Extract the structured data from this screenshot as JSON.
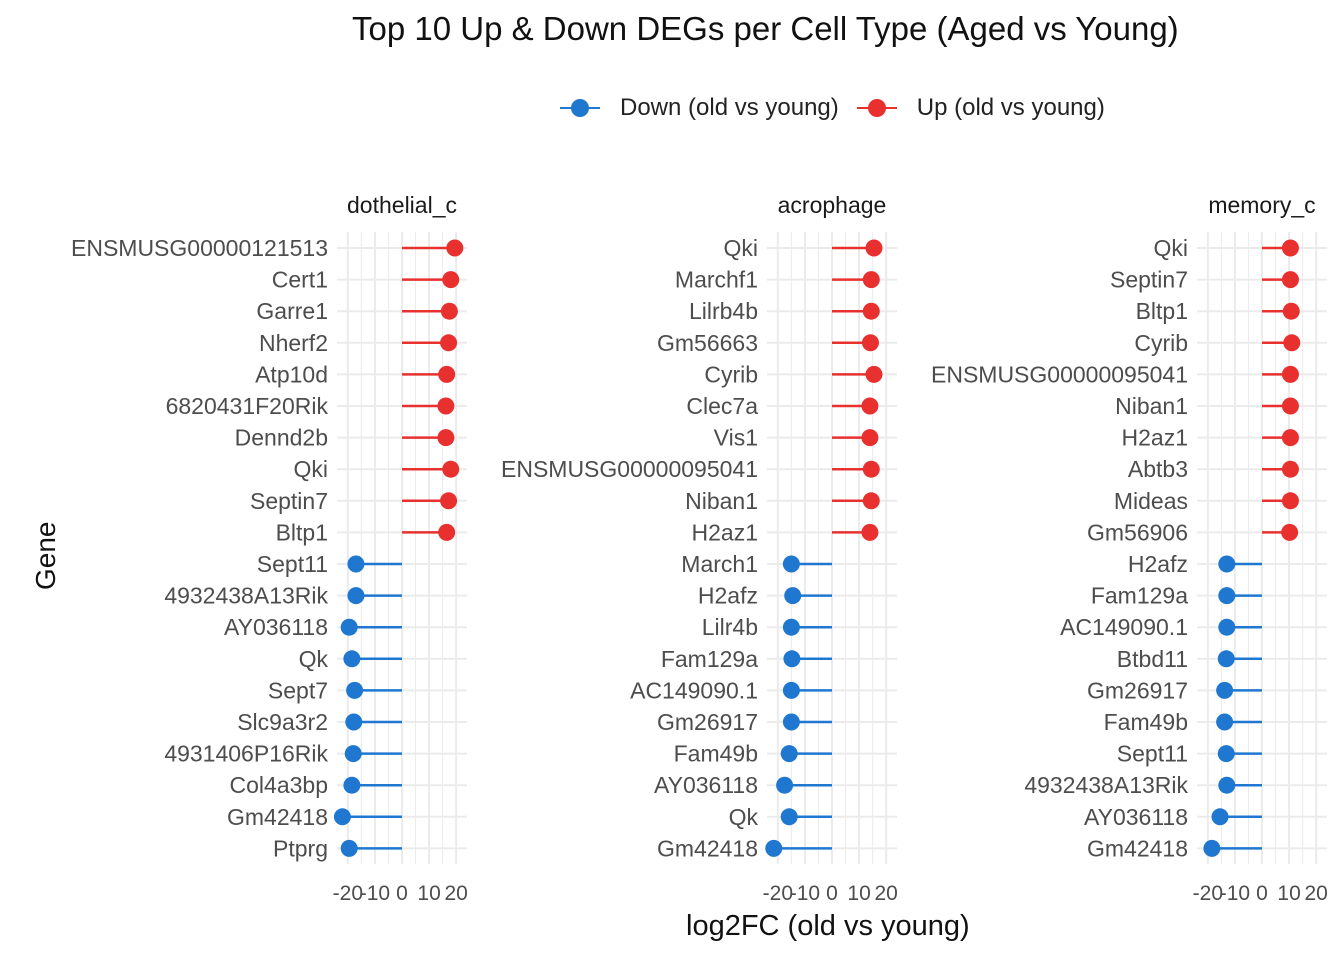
{
  "title": "Top 10 Up & Down DEGs per Cell Type (Aged vs Young)",
  "legend": {
    "down_label": "Down (old vs young)",
    "up_label": "Up (old vs young)"
  },
  "colors": {
    "down": "#1f77d0",
    "up": "#e8312f",
    "grid": "#ebebeb",
    "tick_text": "#4d4d4d"
  },
  "chart_data": {
    "type": "lollipop",
    "xlabel": "log2FC (old vs young)",
    "ylabel": "Gene",
    "xlim": [
      -24,
      24
    ],
    "x_tick_labels": [
      "-20",
      "-10",
      "0",
      "10",
      "20"
    ],
    "grid": true,
    "legend_position": "top",
    "panels": [
      {
        "strip": "dothelial_c",
        "genes": [
          {
            "gene": "ENSMUSG00000121513",
            "log2fc": 19.5,
            "direction": "up"
          },
          {
            "gene": "Cert1",
            "log2fc": 18.0,
            "direction": "up"
          },
          {
            "gene": "Garre1",
            "log2fc": 17.5,
            "direction": "up"
          },
          {
            "gene": "Nherf2",
            "log2fc": 17.2,
            "direction": "up"
          },
          {
            "gene": "Atp10d",
            "log2fc": 16.5,
            "direction": "up"
          },
          {
            "gene": "6820431F20Rik",
            "log2fc": 16.2,
            "direction": "up"
          },
          {
            "gene": "Dennd2b",
            "log2fc": 16.2,
            "direction": "up"
          },
          {
            "gene": "Qki",
            "log2fc": 18.0,
            "direction": "up"
          },
          {
            "gene": "Septin7",
            "log2fc": 17.2,
            "direction": "up"
          },
          {
            "gene": "Bltp1",
            "log2fc": 16.5,
            "direction": "up"
          },
          {
            "gene": "Sept11",
            "log2fc": -17.0,
            "direction": "down"
          },
          {
            "gene": "4932438A13Rik",
            "log2fc": -17.0,
            "direction": "down"
          },
          {
            "gene": "AY036118",
            "log2fc": -19.5,
            "direction": "down"
          },
          {
            "gene": "Qk",
            "log2fc": -18.5,
            "direction": "down"
          },
          {
            "gene": "Sept7",
            "log2fc": -17.5,
            "direction": "down"
          },
          {
            "gene": "Slc9a3r2",
            "log2fc": -17.8,
            "direction": "down"
          },
          {
            "gene": "4931406P16Rik",
            "log2fc": -18.0,
            "direction": "down"
          },
          {
            "gene": "Col4a3bp",
            "log2fc": -18.5,
            "direction": "down"
          },
          {
            "gene": "Gm42418",
            "log2fc": -22.0,
            "direction": "down"
          },
          {
            "gene": "Ptprg",
            "log2fc": -19.5,
            "direction": "down"
          }
        ]
      },
      {
        "strip": "acrophage",
        "genes": [
          {
            "gene": "Qki",
            "log2fc": 15.5,
            "direction": "up"
          },
          {
            "gene": "Marchf1",
            "log2fc": 14.5,
            "direction": "up"
          },
          {
            "gene": "Lilrb4b",
            "log2fc": 14.5,
            "direction": "up"
          },
          {
            "gene": "Gm56663",
            "log2fc": 14.2,
            "direction": "up"
          },
          {
            "gene": "Cyrib",
            "log2fc": 15.5,
            "direction": "up"
          },
          {
            "gene": "Clec7a",
            "log2fc": 14.0,
            "direction": "up"
          },
          {
            "gene": "Vis1",
            "log2fc": 14.0,
            "direction": "up"
          },
          {
            "gene": "ENSMUSG00000095041",
            "log2fc": 14.5,
            "direction": "up"
          },
          {
            "gene": "Niban1",
            "log2fc": 14.5,
            "direction": "up"
          },
          {
            "gene": "H2az1",
            "log2fc": 14.0,
            "direction": "up"
          },
          {
            "gene": "March1",
            "log2fc": -15.0,
            "direction": "down"
          },
          {
            "gene": "H2afz",
            "log2fc": -14.5,
            "direction": "down"
          },
          {
            "gene": "Lilr4b",
            "log2fc": -15.0,
            "direction": "down"
          },
          {
            "gene": "Fam129a",
            "log2fc": -14.8,
            "direction": "down"
          },
          {
            "gene": "AC149090.1",
            "log2fc": -15.0,
            "direction": "down"
          },
          {
            "gene": "Gm26917",
            "log2fc": -15.0,
            "direction": "down"
          },
          {
            "gene": "Fam49b",
            "log2fc": -15.8,
            "direction": "down"
          },
          {
            "gene": "AY036118",
            "log2fc": -17.5,
            "direction": "down"
          },
          {
            "gene": "Qk",
            "log2fc": -15.8,
            "direction": "down"
          },
          {
            "gene": "Gm42418",
            "log2fc": -21.5,
            "direction": "down"
          }
        ]
      },
      {
        "strip": "memory_c",
        "genes": [
          {
            "gene": "Qki",
            "log2fc": 10.5,
            "direction": "up"
          },
          {
            "gene": "Septin7",
            "log2fc": 10.5,
            "direction": "up"
          },
          {
            "gene": "Bltp1",
            "log2fc": 10.8,
            "direction": "up"
          },
          {
            "gene": "Cyrib",
            "log2fc": 11.0,
            "direction": "up"
          },
          {
            "gene": "ENSMUSG00000095041",
            "log2fc": 10.5,
            "direction": "up"
          },
          {
            "gene": "Niban1",
            "log2fc": 10.5,
            "direction": "up"
          },
          {
            "gene": "H2az1",
            "log2fc": 10.5,
            "direction": "up"
          },
          {
            "gene": "Abtb3",
            "log2fc": 10.5,
            "direction": "up"
          },
          {
            "gene": "Mideas",
            "log2fc": 10.5,
            "direction": "up"
          },
          {
            "gene": "Gm56906",
            "log2fc": 10.2,
            "direction": "up"
          },
          {
            "gene": "H2afz",
            "log2fc": -13.0,
            "direction": "down"
          },
          {
            "gene": "Fam129a",
            "log2fc": -13.0,
            "direction": "down"
          },
          {
            "gene": "AC149090.1",
            "log2fc": -13.0,
            "direction": "down"
          },
          {
            "gene": "Btbd11",
            "log2fc": -13.2,
            "direction": "down"
          },
          {
            "gene": "Gm26917",
            "log2fc": -13.8,
            "direction": "down"
          },
          {
            "gene": "Fam49b",
            "log2fc": -13.8,
            "direction": "down"
          },
          {
            "gene": "Sept11",
            "log2fc": -13.2,
            "direction": "down"
          },
          {
            "gene": "4932438A13Rik",
            "log2fc": -13.0,
            "direction": "down"
          },
          {
            "gene": "AY036118",
            "log2fc": -15.5,
            "direction": "down"
          },
          {
            "gene": "Gm42418",
            "log2fc": -18.5,
            "direction": "down"
          }
        ]
      }
    ]
  }
}
